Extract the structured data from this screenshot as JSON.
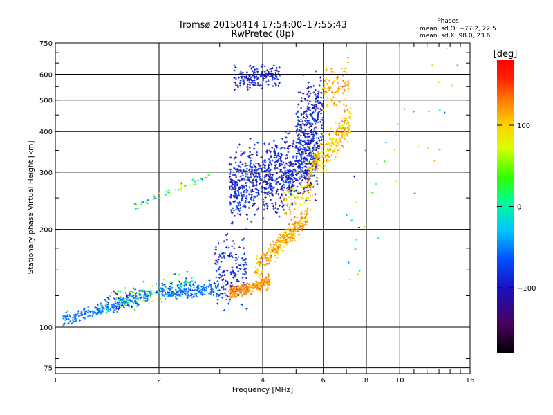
{
  "chart_data": {
    "type": "scatter",
    "title": "Tromsø 20150414 17:54:00–17:55:43",
    "subtitle": "RwPretec (8p)",
    "xlabel": "Frequency [MHz]",
    "ylabel": "Stationary phase Virtual Height [km]",
    "x_scale": "log",
    "y_scale": "log",
    "xlim": [
      1,
      16
    ],
    "ylim": [
      72,
      750
    ],
    "grid": true,
    "x_major_ticks": [
      {
        "value": 1,
        "label": "1"
      },
      {
        "value": 2,
        "label": "2"
      },
      {
        "value": 4,
        "label": "4"
      },
      {
        "value": 6,
        "label": "6"
      },
      {
        "value": 8,
        "label": "8"
      },
      {
        "value": 10,
        "label": "10"
      },
      {
        "value": 16,
        "label": "16"
      }
    ],
    "y_major_ticks": [
      {
        "value": 75,
        "label": "75"
      },
      {
        "value": 100,
        "label": "100"
      },
      {
        "value": 200,
        "label": "200"
      },
      {
        "value": 300,
        "label": "300"
      },
      {
        "value": 400,
        "label": "400"
      },
      {
        "value": 500,
        "label": "500"
      },
      {
        "value": 600,
        "label": "600"
      },
      {
        "value": 750,
        "label": "750"
      }
    ],
    "stats": {
      "heading": "Phases",
      "line1": "mean, sd,O: −77.2, 22.5",
      "line2": "mean, sd,X:  98.0, 23.6"
    },
    "colorbar": {
      "unit_label": "[deg]",
      "range": [
        -180,
        180
      ],
      "ticks": [
        {
          "value": 100,
          "label": "100"
        },
        {
          "value": 0,
          "label": "0"
        },
        {
          "value": -100,
          "label": "−100"
        }
      ],
      "colormap": "rainbow (black–purple–blue–cyan–green–yellow–orange–red)"
    },
    "point_clusters": [
      {
        "x_range": [
          1.05,
          1.9
        ],
        "h_base": 105,
        "h_slope": 0.32,
        "spread": 0.035,
        "count": 220,
        "phase": [
          -70,
          -40
        ]
      },
      {
        "x_range": [
          1.4,
          2.5
        ],
        "h_base": 118,
        "h_slope": 0.25,
        "spread": 0.06,
        "count": 180,
        "phase": [
          -110,
          90
        ]
      },
      {
        "x_range": [
          1.7,
          2.9
        ],
        "h_base": 235,
        "h_slope": 0.45,
        "spread": 0.02,
        "count": 50,
        "phase": [
          -60,
          120
        ]
      },
      {
        "x_range": [
          2.0,
          3.0
        ],
        "h_base": 128,
        "h_slope": 0.05,
        "spread": 0.04,
        "count": 160,
        "phase": [
          -70,
          -45
        ]
      },
      {
        "x_range": [
          2.9,
          3.6
        ],
        "h_base": 150,
        "h_slope": 0.0,
        "spread": 0.18,
        "count": 160,
        "phase": [
          -120,
          -60
        ]
      },
      {
        "x_range": [
          3.2,
          4.2
        ],
        "h_base": 127,
        "h_slope": 0.3,
        "spread": 0.035,
        "count": 220,
        "phase": [
          110,
          140
        ]
      },
      {
        "x_range": [
          3.8,
          5.4
        ],
        "h_base": 150,
        "h_slope": 1.1,
        "spread": 0.05,
        "count": 300,
        "phase": [
          80,
          140
        ]
      },
      {
        "x_range": [
          3.2,
          5.8
        ],
        "h_base": 270,
        "h_slope": 0.3,
        "spread": 0.18,
        "count": 900,
        "phase": [
          -125,
          -60
        ]
      },
      {
        "x_range": [
          3.3,
          4.5
        ],
        "h_base": 580,
        "h_slope": 0.1,
        "spread": 0.06,
        "count": 160,
        "phase": [
          -120,
          -70
        ]
      },
      {
        "x_range": [
          5.0,
          6.0
        ],
        "h_base": 400,
        "h_slope": 0.6,
        "spread": 0.2,
        "count": 260,
        "phase": [
          -120,
          -60
        ]
      },
      {
        "x_range": [
          5.4,
          7.2
        ],
        "h_base": 300,
        "h_slope": 1.2,
        "spread": 0.09,
        "count": 260,
        "phase": [
          70,
          130
        ]
      },
      {
        "x_range": [
          6.0,
          7.1
        ],
        "h_base": 520,
        "h_slope": 0.4,
        "spread": 0.12,
        "count": 90,
        "phase": [
          90,
          140
        ]
      },
      {
        "x_range": [
          4.6,
          5.6
        ],
        "h_base": 245,
        "h_slope": 0.3,
        "spread": 0.1,
        "count": 70,
        "phase": [
          60,
          140
        ]
      },
      {
        "x_range": [
          7.0,
          15.9
        ],
        "h_base": 150,
        "h_slope": 2.2,
        "spread": 0.45,
        "count": 45,
        "phase": [
          -110,
          130
        ]
      }
    ]
  }
}
